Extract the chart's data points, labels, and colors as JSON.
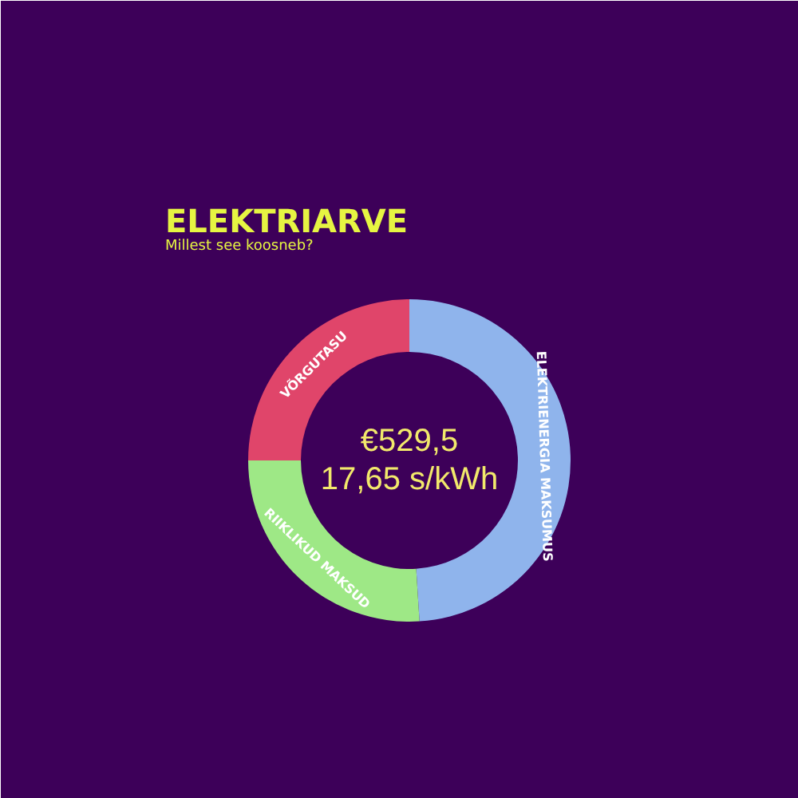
{
  "chart_data": {
    "type": "donut",
    "title": "ELEKTRIARVE",
    "subtitle": "Millest see koosneb?",
    "categories": [
      "ELEKTRIENERGIA MAKSUMUS",
      "RIIKLIKUD MAKSUD",
      "VÕRGUTASU"
    ],
    "values": [
      49,
      26,
      25
    ],
    "colors": [
      "#8fb4ec",
      "#9ee886",
      "#e0456a"
    ],
    "annotations": [
      "€529,5",
      "17,65 s/kWh"
    ]
  }
}
